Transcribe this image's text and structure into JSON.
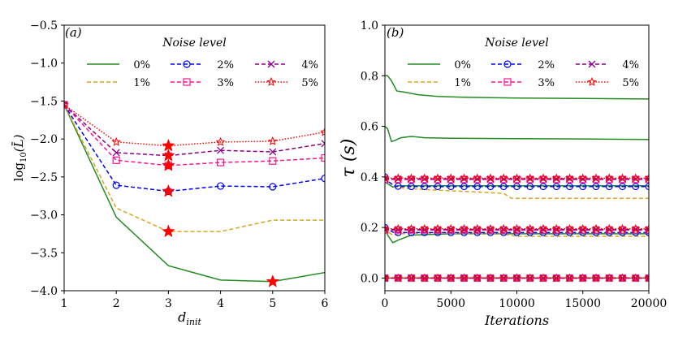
{
  "chart_data": [
    {
      "type": "line",
      "panel_label": "(a)",
      "xlabel": "d",
      "xlabel_sub": "init",
      "ylabel": "log",
      "ylabel_sub": "10",
      "ylabel_arg": "(L̄)",
      "xlim": [
        1,
        6
      ],
      "ylim": [
        -4.0,
        -0.5
      ],
      "xticks": [
        1,
        2,
        3,
        4,
        5,
        6
      ],
      "xtick_labels": [
        "1",
        "2",
        "3",
        "4",
        "5",
        "6"
      ],
      "yticks": [
        -4.0,
        -3.5,
        -3.0,
        -2.5,
        -2.0,
        -1.5,
        -1.0,
        -0.5
      ],
      "ytick_labels": [
        "−4.0",
        "−3.5",
        "−3.0",
        "−2.5",
        "−2.0",
        "−1.5",
        "−1.0",
        "−0.5"
      ],
      "legend_title": "Noise level",
      "legend_position": "top",
      "x": [
        1,
        2,
        3,
        4,
        5,
        6
      ],
      "series": [
        {
          "name": "0%",
          "color": "#228b22",
          "dash": "solid",
          "marker": "none",
          "values": [
            -1.55,
            -3.03,
            -3.67,
            -3.86,
            -3.88,
            -3.76
          ]
        },
        {
          "name": "1%",
          "color": "#daa520",
          "dash": "dashed",
          "marker": "none",
          "values": [
            -1.55,
            -2.91,
            -3.22,
            -3.22,
            -3.07,
            -3.07
          ]
        },
        {
          "name": "2%",
          "color": "#0000ff",
          "dash": "dashed",
          "marker": "circle",
          "values": [
            -1.55,
            -2.61,
            -2.69,
            -2.62,
            -2.63,
            -2.52
          ]
        },
        {
          "name": "3%",
          "color": "#ff1493",
          "dash": "dashed",
          "marker": "square",
          "values": [
            -1.55,
            -2.28,
            -2.35,
            -2.31,
            -2.29,
            -2.25
          ]
        },
        {
          "name": "4%",
          "color": "#8b008b",
          "dash": "dashed",
          "marker": "x",
          "values": [
            -1.55,
            -2.18,
            -2.22,
            -2.15,
            -2.17,
            -2.06
          ]
        },
        {
          "name": "5%",
          "color": "#ff0000",
          "dash": "dotted",
          "marker": "star",
          "values": [
            -1.55,
            -2.04,
            -2.09,
            -2.04,
            -2.03,
            -1.91
          ]
        }
      ],
      "minima": [
        {
          "series": "0%",
          "x": 5,
          "y": -3.88
        },
        {
          "series": "1%",
          "x": 3,
          "y": -3.22
        },
        {
          "series": "2%",
          "x": 3,
          "y": -2.69
        },
        {
          "series": "3%",
          "x": 3,
          "y": -2.35
        },
        {
          "series": "4%",
          "x": 3,
          "y": -2.22
        },
        {
          "series": "5%",
          "x": 3,
          "y": -2.09
        }
      ],
      "minima_color": "#ff0000"
    },
    {
      "type": "line",
      "panel_label": "(b)",
      "xlabel": "Iterations",
      "ylabel": "τ (s)",
      "xlim": [
        0,
        20000
      ],
      "ylim": [
        -0.05,
        1.0
      ],
      "xticks": [
        0,
        5000,
        10000,
        15000,
        20000
      ],
      "xtick_labels": [
        "0",
        "5000",
        "10000",
        "15000",
        "20000"
      ],
      "yticks": [
        0.0,
        0.2,
        0.4,
        0.6,
        0.8,
        1.0
      ],
      "ytick_labels": [
        "0.0",
        "0.2",
        "0.4",
        "0.6",
        "0.8",
        "1.0"
      ],
      "legend_title": "Noise level",
      "legend_position": "top",
      "series": [
        {
          "name": "0%",
          "color": "#228b22",
          "dash": "solid",
          "marker": "none",
          "lines": [
            {
              "x": [
                0,
                200,
                500,
                900,
                1500,
                2500,
                4000,
                6000,
                10000,
                15000,
                20000
              ],
              "y": [
                0.8,
                0.8,
                0.78,
                0.74,
                0.735,
                0.725,
                0.718,
                0.715,
                0.712,
                0.71,
                0.708
              ]
            },
            {
              "x": [
                0,
                200,
                500,
                800,
                1200,
                2000,
                3000,
                5000,
                10000,
                15000,
                20000
              ],
              "y": [
                0.6,
                0.59,
                0.54,
                0.545,
                0.555,
                0.56,
                0.555,
                0.553,
                0.551,
                0.55,
                0.548
              ]
            },
            {
              "x": [
                0,
                300,
                600,
                1000,
                2000,
                5000,
                10000,
                20000
              ],
              "y": [
                0.38,
                0.37,
                0.36,
                0.365,
                0.365,
                0.365,
                0.365,
                0.365
              ]
            },
            {
              "x": [
                0,
                200,
                600,
                1000,
                2000,
                5000,
                10000,
                20000
              ],
              "y": [
                0.2,
                0.17,
                0.14,
                0.15,
                0.17,
                0.175,
                0.175,
                0.175
              ]
            },
            {
              "x": [
                0,
                20000
              ],
              "y": [
                0.0,
                0.0
              ]
            }
          ]
        },
        {
          "name": "1%",
          "color": "#daa520",
          "dash": "dashed",
          "marker": "none",
          "lines": [
            {
              "x": [
                0,
                300,
                800,
                1500,
                3000,
                5000,
                7000,
                9000,
                9600,
                12000,
                15000,
                20000
              ],
              "y": [
                0.4,
                0.38,
                0.36,
                0.355,
                0.35,
                0.345,
                0.34,
                0.335,
                0.315,
                0.315,
                0.315,
                0.315
              ]
            },
            {
              "x": [
                0,
                300,
                600,
                1200,
                3000,
                6000,
                9000,
                10000,
                15000,
                20000
              ],
              "y": [
                0.2,
                0.18,
                0.17,
                0.175,
                0.178,
                0.176,
                0.174,
                0.165,
                0.165,
                0.165
              ]
            },
            {
              "x": [
                0,
                20000
              ],
              "y": [
                0.0,
                0.0
              ]
            }
          ]
        },
        {
          "name": "2%",
          "color": "#0000ff",
          "dash": "dashed",
          "marker": "circle",
          "lines": [
            {
              "x": [
                0,
                300,
                700,
                1200,
                3000,
                10000,
                20000
              ],
              "y": [
                0.4,
                0.38,
                0.365,
                0.362,
                0.362,
                0.362,
                0.362
              ]
            },
            {
              "x": [
                0,
                300,
                700,
                1200,
                3000,
                10000,
                20000
              ],
              "y": [
                0.2,
                0.19,
                0.18,
                0.18,
                0.18,
                0.18,
                0.18
              ]
            },
            {
              "x": [
                0,
                20000
              ],
              "y": [
                0.0,
                0.0
              ]
            }
          ]
        },
        {
          "name": "3%",
          "color": "#ff1493",
          "dash": "dashed",
          "marker": "square",
          "lines": [
            {
              "x": [
                0,
                20000
              ],
              "y": [
                0.39,
                0.39
              ]
            },
            {
              "x": [
                0,
                20000
              ],
              "y": [
                0.19,
                0.19
              ]
            },
            {
              "x": [
                0,
                20000
              ],
              "y": [
                0.0,
                0.0
              ]
            }
          ]
        },
        {
          "name": "4%",
          "color": "#8b008b",
          "dash": "dashed",
          "marker": "x",
          "lines": [
            {
              "x": [
                0,
                20000
              ],
              "y": [
                0.392,
                0.392
              ]
            },
            {
              "x": [
                0,
                20000
              ],
              "y": [
                0.192,
                0.192
              ]
            },
            {
              "x": [
                0,
                20000
              ],
              "y": [
                0.0,
                0.0
              ]
            }
          ]
        },
        {
          "name": "5%",
          "color": "#ff0000",
          "dash": "dotted",
          "marker": "star",
          "lines": [
            {
              "x": [
                0,
                20000
              ],
              "y": [
                0.395,
                0.395
              ]
            },
            {
              "x": [
                0,
                20000
              ],
              "y": [
                0.195,
                0.195
              ]
            },
            {
              "x": [
                0,
                20000
              ],
              "y": [
                0.0,
                0.0
              ]
            }
          ]
        }
      ],
      "marker_x": [
        0,
        1000,
        2000,
        3000,
        4000,
        5000,
        6000,
        7000,
        8000,
        9000,
        10000,
        11000,
        12000,
        13000,
        14000,
        15000,
        16000,
        17000,
        18000,
        19000,
        20000
      ]
    }
  ]
}
